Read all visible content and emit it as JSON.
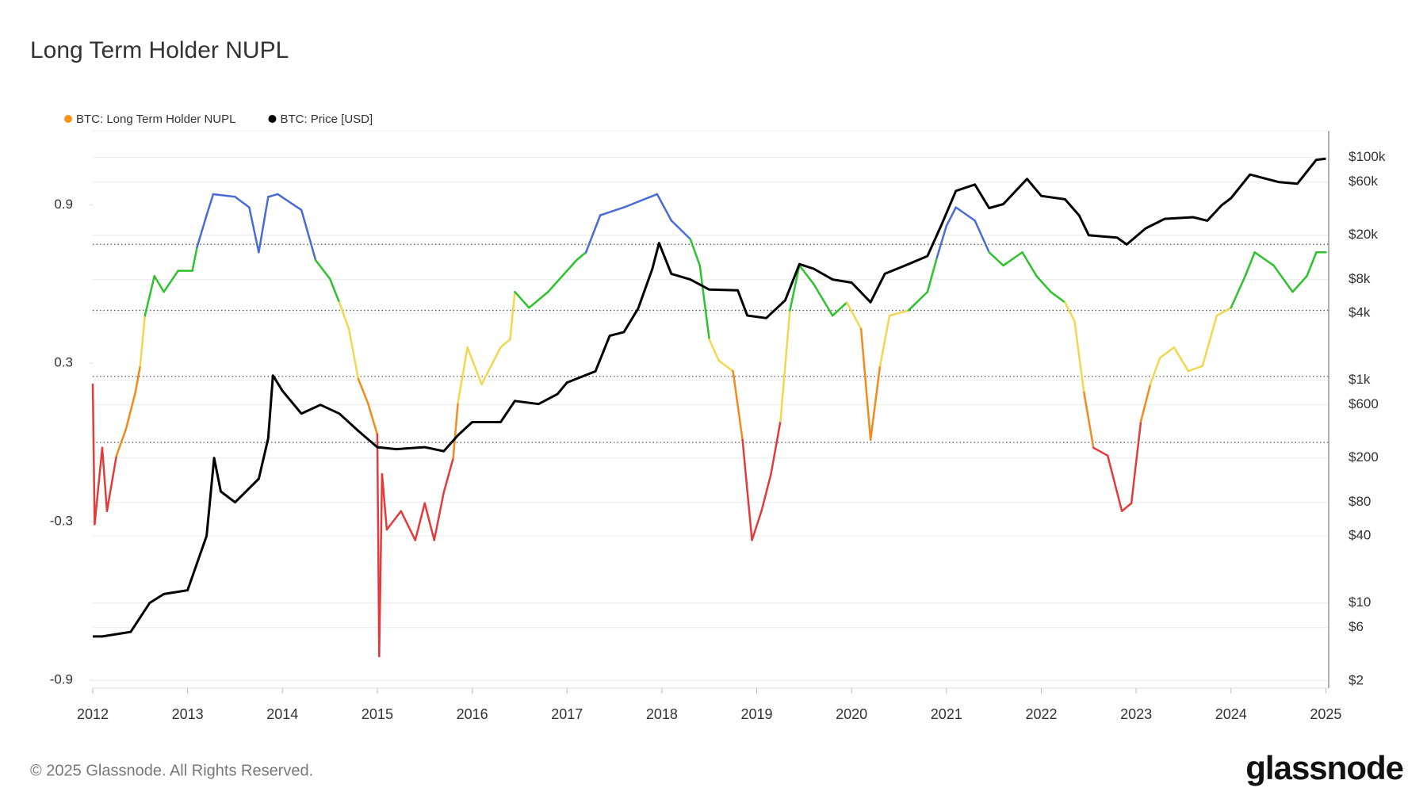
{
  "chart_data": {
    "type": "line",
    "title": "Long Term Holder NUPL",
    "footer": "© 2025 Glassnode. All Rights Reserved.",
    "brand": "glassnode",
    "xlim": [
      2012,
      2025.03
    ],
    "xticks": [
      2012,
      2013,
      2014,
      2015,
      2016,
      2017,
      2018,
      2019,
      2020,
      2021,
      2022,
      2023,
      2024,
      2025
    ],
    "ylim": [
      -0.93,
      1.18
    ],
    "yticks": [
      -0.9,
      -0.3,
      0.3,
      0.9
    ],
    "y2lim": [
      1.72,
      173000
    ],
    "y2log": true,
    "y2ticks": [
      {
        "value": 2,
        "label": "$2"
      },
      {
        "value": 6,
        "label": "$6"
      },
      {
        "value": 10,
        "label": "$10"
      },
      {
        "value": 40,
        "label": "$40"
      },
      {
        "value": 80,
        "label": "$80"
      },
      {
        "value": 200,
        "label": "$200"
      },
      {
        "value": 600,
        "label": "$600"
      },
      {
        "value": 1000,
        "label": "$1k"
      },
      {
        "value": 4000,
        "label": "$4k"
      },
      {
        "value": 8000,
        "label": "$8k"
      },
      {
        "value": 20000,
        "label": "$20k"
      },
      {
        "value": 60000,
        "label": "$60k"
      },
      {
        "value": 100000,
        "label": "$100k"
      }
    ],
    "reference_lines": [
      0,
      0.25,
      0.5,
      0.75
    ],
    "color_bands": {
      "thresholds": [
        0,
        0.25,
        0.5,
        0.75
      ],
      "colors": [
        "#e23b3b",
        "#f28a1c",
        "#f0d850",
        "#2ec22e",
        "#4a6bd6"
      ]
    },
    "series": [
      {
        "name": "BTC: Long Term Holder NUPL",
        "color": "#f7931a",
        "x": [
          2012.0,
          2012.02,
          2012.1,
          2012.15,
          2012.25,
          2012.35,
          2012.45,
          2012.5,
          2012.55,
          2012.65,
          2012.75,
          2012.9,
          2013.05,
          2013.1,
          2013.2,
          2013.27,
          2013.5,
          2013.65,
          2013.75,
          2013.85,
          2013.95,
          2014.2,
          2014.35,
          2014.5,
          2014.6,
          2014.7,
          2014.8,
          2014.9,
          2015.0,
          2015.02,
          2015.05,
          2015.1,
          2015.25,
          2015.4,
          2015.5,
          2015.6,
          2015.7,
          2015.8,
          2015.85,
          2015.95,
          2016.1,
          2016.3,
          2016.4,
          2016.45,
          2016.6,
          2016.8,
          2017.1,
          2017.2,
          2017.35,
          2017.6,
          2017.95,
          2018.1,
          2018.3,
          2018.4,
          2018.5,
          2018.6,
          2018.75,
          2018.85,
          2018.95,
          2019.05,
          2019.15,
          2019.25,
          2019.35,
          2019.45,
          2019.6,
          2019.8,
          2019.95,
          2020.1,
          2020.2,
          2020.3,
          2020.4,
          2020.6,
          2020.8,
          2020.9,
          2021.0,
          2021.1,
          2021.3,
          2021.45,
          2021.6,
          2021.8,
          2021.95,
          2022.1,
          2022.25,
          2022.35,
          2022.45,
          2022.55,
          2022.7,
          2022.85,
          2022.95,
          2023.05,
          2023.15,
          2023.25,
          2023.4,
          2023.55,
          2023.7,
          2023.85,
          2024.0,
          2024.15,
          2024.25,
          2024.45,
          2024.65,
          2024.8,
          2024.9,
          2025.0
        ],
        "values": [
          0.22,
          -0.31,
          -0.02,
          -0.26,
          -0.05,
          0.05,
          0.19,
          0.29,
          0.48,
          0.63,
          0.57,
          0.65,
          0.65,
          0.74,
          0.86,
          0.94,
          0.93,
          0.89,
          0.72,
          0.93,
          0.94,
          0.88,
          0.69,
          0.62,
          0.53,
          0.43,
          0.24,
          0.15,
          0.03,
          -0.81,
          -0.12,
          -0.33,
          -0.26,
          -0.37,
          -0.23,
          -0.37,
          -0.19,
          -0.06,
          0.15,
          0.36,
          0.22,
          0.36,
          0.39,
          0.57,
          0.51,
          0.57,
          0.69,
          0.72,
          0.86,
          0.89,
          0.94,
          0.84,
          0.77,
          0.67,
          0.39,
          0.31,
          0.27,
          0.01,
          -0.37,
          -0.26,
          -0.12,
          0.08,
          0.5,
          0.67,
          0.6,
          0.48,
          0.53,
          0.43,
          0.01,
          0.29,
          0.48,
          0.5,
          0.57,
          0.7,
          0.82,
          0.89,
          0.84,
          0.72,
          0.67,
          0.72,
          0.63,
          0.57,
          0.53,
          0.46,
          0.19,
          -0.02,
          -0.05,
          -0.26,
          -0.23,
          0.08,
          0.22,
          0.32,
          0.36,
          0.27,
          0.29,
          0.48,
          0.51,
          0.63,
          0.72,
          0.67,
          0.57,
          0.63,
          0.72,
          0.72
        ]
      },
      {
        "name": "BTC: Price [USD]",
        "color": "#000000",
        "axis": "y2",
        "x": [
          2012.0,
          2012.1,
          2012.4,
          2012.6,
          2012.75,
          2013.0,
          2013.2,
          2013.28,
          2013.35,
          2013.5,
          2013.75,
          2013.85,
          2013.9,
          2014.0,
          2014.2,
          2014.4,
          2014.6,
          2014.8,
          2015.0,
          2015.2,
          2015.5,
          2015.7,
          2015.85,
          2016.0,
          2016.3,
          2016.45,
          2016.7,
          2016.9,
          2017.0,
          2017.3,
          2017.45,
          2017.6,
          2017.75,
          2017.9,
          2017.97,
          2018.1,
          2018.3,
          2018.5,
          2018.8,
          2018.9,
          2019.1,
          2019.3,
          2019.45,
          2019.6,
          2019.8,
          2020.0,
          2020.2,
          2020.35,
          2020.6,
          2020.8,
          2020.95,
          2021.1,
          2021.3,
          2021.45,
          2021.6,
          2021.85,
          2022.0,
          2022.25,
          2022.4,
          2022.5,
          2022.8,
          2022.9,
          2023.1,
          2023.3,
          2023.6,
          2023.75,
          2023.9,
          2024.0,
          2024.2,
          2024.5,
          2024.7,
          2024.9,
          2025.0
        ],
        "values": [
          5,
          5,
          5.5,
          10,
          12,
          13,
          40,
          200,
          100,
          80,
          130,
          300,
          1100,
          800,
          500,
          600,
          500,
          350,
          250,
          240,
          250,
          230,
          320,
          420,
          420,
          650,
          610,
          750,
          950,
          1200,
          2500,
          2700,
          4400,
          10000,
          17000,
          9000,
          8000,
          6500,
          6400,
          3800,
          3600,
          5200,
          11000,
          10000,
          8000,
          7500,
          5000,
          9000,
          11000,
          13000,
          25000,
          50000,
          57000,
          35000,
          38000,
          64000,
          45000,
          42000,
          30000,
          20000,
          19000,
          16500,
          23000,
          28000,
          29000,
          27000,
          37000,
          43000,
          70000,
          60000,
          58000,
          95000,
          97000
        ]
      }
    ]
  }
}
